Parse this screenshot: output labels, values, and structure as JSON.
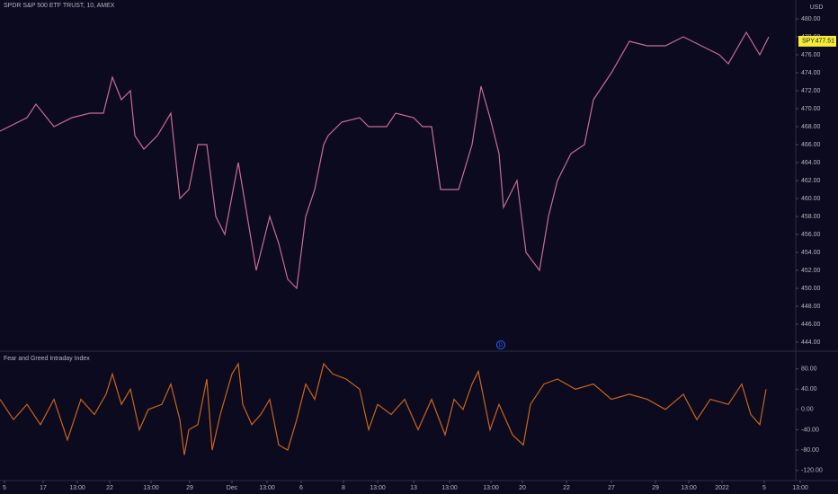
{
  "chart_data": [
    {
      "type": "line",
      "title": "SPDR S&P 500 ETF TRUST, 10, AMEX",
      "y_label": "USD",
      "symbol_label": "SPY",
      "last_price": 477.51,
      "event_marker": "D",
      "x": [
        0,
        30,
        40,
        60,
        80,
        100,
        115,
        125,
        135,
        145,
        150,
        160,
        175,
        190,
        200,
        210,
        220,
        230,
        240,
        250,
        265,
        275,
        285,
        300,
        310,
        320,
        330,
        340,
        350,
        360,
        365,
        380,
        400,
        410,
        430,
        440,
        460,
        470,
        480,
        490,
        510,
        525,
        535,
        545,
        555,
        560,
        575,
        585,
        600,
        610,
        620,
        635,
        650,
        660,
        680,
        700,
        720,
        740,
        760,
        780,
        800,
        810,
        830,
        845,
        855
      ],
      "series": [
        {
          "name": "SPY",
          "color": "#c76d93",
          "values": [
            467.5,
            469,
            470.5,
            468,
            469,
            469.5,
            469.5,
            473.5,
            471,
            472,
            467,
            465.5,
            467,
            469.5,
            460,
            461,
            466,
            466,
            458,
            456,
            464,
            458,
            452,
            458,
            455,
            451,
            450,
            458,
            461,
            466,
            467,
            468.5,
            469,
            468,
            468,
            469.5,
            469,
            468,
            468,
            461,
            461,
            466,
            472.5,
            469,
            465,
            459,
            462,
            454,
            452,
            458,
            462,
            465,
            466,
            471,
            474,
            477.5,
            477,
            477,
            478,
            477,
            476,
            475,
            478.5,
            476,
            478
          ]
        }
      ],
      "xlim": [
        0,
        885
      ],
      "ylim": [
        443.1,
        482.1
      ],
      "yticks": [
        {
          "value": 444,
          "label": "444.00"
        },
        {
          "value": 446,
          "label": "446.00"
        },
        {
          "value": 448,
          "label": "448.00"
        },
        {
          "value": 450,
          "label": "450.00"
        },
        {
          "value": 452,
          "label": "452.00"
        },
        {
          "value": 454,
          "label": "454.00"
        },
        {
          "value": 456,
          "label": "456.00"
        },
        {
          "value": 458,
          "label": "458.00"
        },
        {
          "value": 460,
          "label": "460.00"
        },
        {
          "value": 462,
          "label": "462.00"
        },
        {
          "value": 464,
          "label": "464.00"
        },
        {
          "value": 466,
          "label": "466.00"
        },
        {
          "value": 468,
          "label": "468.00"
        },
        {
          "value": 470,
          "label": "470.00"
        },
        {
          "value": 472,
          "label": "472.00"
        },
        {
          "value": 474,
          "label": "474.00"
        },
        {
          "value": 476,
          "label": "476.00"
        },
        {
          "value": 478,
          "label": "478.00"
        },
        {
          "value": 480,
          "label": "480.00"
        }
      ]
    },
    {
      "type": "line",
      "title": "Fear and Greed Intraday Index",
      "x": [
        0,
        15,
        30,
        45,
        60,
        75,
        90,
        105,
        118,
        125,
        135,
        145,
        155,
        165,
        180,
        190,
        200,
        205,
        210,
        220,
        230,
        236,
        245,
        258,
        265,
        270,
        280,
        290,
        300,
        310,
        320,
        330,
        340,
        350,
        360,
        370,
        385,
        400,
        410,
        420,
        435,
        450,
        465,
        480,
        495,
        505,
        515,
        525,
        532,
        545,
        555,
        570,
        582,
        590,
        605,
        620,
        640,
        660,
        680,
        700,
        720,
        740,
        760,
        775,
        790,
        810,
        825,
        835,
        845,
        852
      ],
      "series": [
        {
          "name": "Fear and Greed Intraday Index",
          "color": "#c8651c",
          "values": [
            20,
            -20,
            10,
            -30,
            20,
            -60,
            20,
            -10,
            30,
            70,
            10,
            40,
            -40,
            0,
            10,
            50,
            -20,
            -90,
            -40,
            -30,
            60,
            -80,
            -10,
            70,
            90,
            10,
            -30,
            -10,
            20,
            -70,
            -80,
            -20,
            50,
            20,
            90,
            70,
            60,
            40,
            -40,
            10,
            -10,
            20,
            -40,
            20,
            -50,
            20,
            0,
            50,
            75,
            -40,
            10,
            -50,
            -70,
            10,
            50,
            60,
            40,
            50,
            20,
            30,
            20,
            0,
            30,
            -20,
            20,
            10,
            50,
            -10,
            -30,
            40
          ]
        }
      ],
      "xlim": [
        0,
        885
      ],
      "ylim": [
        -140,
        113
      ],
      "yticks": [
        {
          "value": 80,
          "label": "80.00"
        },
        {
          "value": 40,
          "label": "40.00"
        },
        {
          "value": 0,
          "label": "0.00"
        },
        {
          "value": -40,
          "label": "-40.00"
        },
        {
          "value": -80,
          "label": "-80.00"
        },
        {
          "value": -120,
          "label": "-120.00"
        }
      ],
      "xticks": [
        {
          "value": 5,
          "label": "5"
        },
        {
          "value": 48,
          "label": "17"
        },
        {
          "value": 86,
          "label": "13:00"
        },
        {
          "value": 122,
          "label": "22"
        },
        {
          "value": 168,
          "label": "13:00"
        },
        {
          "value": 211,
          "label": "29"
        },
        {
          "value": 258,
          "label": "Dec"
        },
        {
          "value": 297,
          "label": "13:00"
        },
        {
          "value": 335,
          "label": "6"
        },
        {
          "value": 382,
          "label": "8"
        },
        {
          "value": 420,
          "label": "13:00"
        },
        {
          "value": 460,
          "label": "13"
        },
        {
          "value": 500,
          "label": "13:00"
        },
        {
          "value": 546,
          "label": "13:00"
        },
        {
          "value": 581,
          "label": "20"
        },
        {
          "value": 630,
          "label": "22"
        },
        {
          "value": 680,
          "label": "27"
        },
        {
          "value": 729,
          "label": "29"
        },
        {
          "value": 766,
          "label": "13:00"
        },
        {
          "value": 803,
          "label": "2022"
        },
        {
          "value": 850,
          "label": "5"
        },
        {
          "value": 890,
          "label": "13:00"
        }
      ]
    }
  ]
}
